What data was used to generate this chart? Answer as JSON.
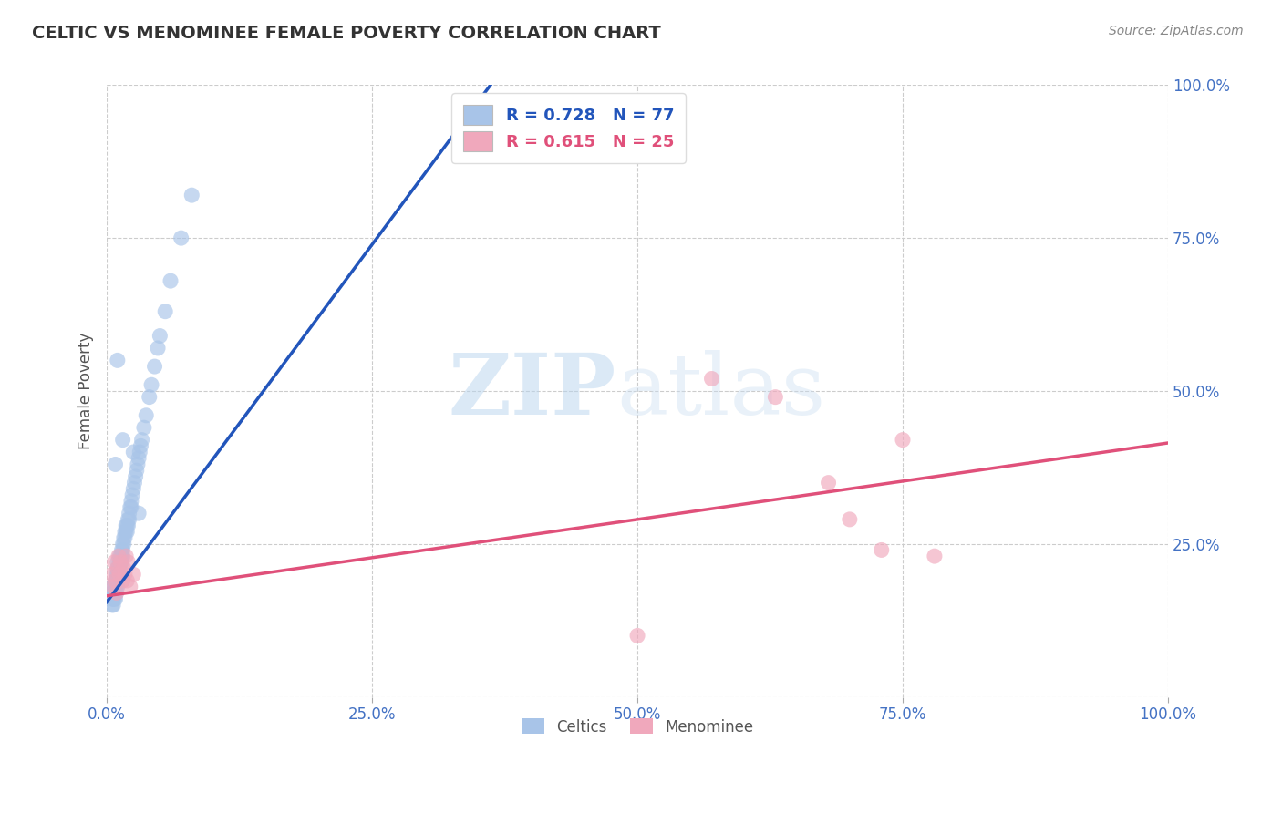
{
  "title": "CELTIC VS MENOMINEE FEMALE POVERTY CORRELATION CHART",
  "source_text": "Source: ZipAtlas.com",
  "ylabel": "Female Poverty",
  "xlim": [
    0,
    1
  ],
  "ylim": [
    0,
    1
  ],
  "xticks": [
    0.0,
    0.25,
    0.5,
    0.75,
    1.0
  ],
  "yticks": [
    0.0,
    0.25,
    0.5,
    0.75,
    1.0
  ],
  "xticklabels": [
    "0.0%",
    "25.0%",
    "50.0%",
    "75.0%",
    "100.0%"
  ],
  "yticklabels": [
    "",
    "25.0%",
    "50.0%",
    "75.0%",
    "100.0%"
  ],
  "tick_color": "#4472c4",
  "grid_color": "#cccccc",
  "background_color": "#ffffff",
  "celtics_color": "#a8c4e8",
  "menominee_color": "#f0a8bc",
  "celtics_line_color": "#2255bb",
  "menominee_line_color": "#e0507a",
  "celtics_R": 0.728,
  "celtics_N": 77,
  "menominee_R": 0.615,
  "menominee_N": 25,
  "watermark_zip": "ZIP",
  "watermark_atlas": "atlas",
  "legend_labels": [
    "Celtics",
    "Menominee"
  ],
  "celtics_line_x": [
    0.0,
    0.37
  ],
  "celtics_line_y": [
    0.155,
    1.02
  ],
  "menominee_line_x": [
    0.0,
    1.0
  ],
  "menominee_line_y": [
    0.165,
    0.415
  ],
  "celtics_x": [
    0.005,
    0.005,
    0.005,
    0.005,
    0.006,
    0.006,
    0.006,
    0.007,
    0.007,
    0.007,
    0.008,
    0.008,
    0.008,
    0.008,
    0.009,
    0.009,
    0.009,
    0.009,
    0.01,
    0.01,
    0.01,
    0.01,
    0.01,
    0.011,
    0.011,
    0.012,
    0.012,
    0.012,
    0.013,
    0.013,
    0.014,
    0.014,
    0.014,
    0.015,
    0.015,
    0.015,
    0.016,
    0.016,
    0.017,
    0.017,
    0.018,
    0.018,
    0.019,
    0.019,
    0.02,
    0.02,
    0.021,
    0.021,
    0.022,
    0.023,
    0.023,
    0.024,
    0.025,
    0.026,
    0.027,
    0.028,
    0.029,
    0.03,
    0.031,
    0.032,
    0.033,
    0.035,
    0.037,
    0.04,
    0.042,
    0.045,
    0.048,
    0.05,
    0.055,
    0.06,
    0.07,
    0.08,
    0.03,
    0.025,
    0.015,
    0.01,
    0.008
  ],
  "celtics_y": [
    0.17,
    0.16,
    0.18,
    0.15,
    0.17,
    0.16,
    0.15,
    0.18,
    0.16,
    0.17,
    0.19,
    0.17,
    0.16,
    0.18,
    0.2,
    0.19,
    0.18,
    0.17,
    0.21,
    0.2,
    0.19,
    0.18,
    0.22,
    0.21,
    0.2,
    0.22,
    0.21,
    0.23,
    0.23,
    0.22,
    0.24,
    0.23,
    0.22,
    0.25,
    0.24,
    0.23,
    0.26,
    0.25,
    0.27,
    0.26,
    0.28,
    0.27,
    0.28,
    0.27,
    0.29,
    0.28,
    0.3,
    0.29,
    0.31,
    0.32,
    0.31,
    0.33,
    0.34,
    0.35,
    0.36,
    0.37,
    0.38,
    0.39,
    0.4,
    0.41,
    0.42,
    0.44,
    0.46,
    0.49,
    0.51,
    0.54,
    0.57,
    0.59,
    0.63,
    0.68,
    0.75,
    0.82,
    0.3,
    0.4,
    0.42,
    0.55,
    0.38
  ],
  "menominee_x": [
    0.005,
    0.006,
    0.007,
    0.008,
    0.009,
    0.01,
    0.011,
    0.012,
    0.013,
    0.015,
    0.016,
    0.017,
    0.018,
    0.019,
    0.02,
    0.022,
    0.025,
    0.57,
    0.63,
    0.68,
    0.7,
    0.73,
    0.75,
    0.78,
    0.5
  ],
  "menominee_y": [
    0.2,
    0.18,
    0.22,
    0.19,
    0.17,
    0.21,
    0.23,
    0.2,
    0.22,
    0.19,
    0.21,
    0.2,
    0.23,
    0.19,
    0.22,
    0.18,
    0.2,
    0.52,
    0.49,
    0.35,
    0.29,
    0.24,
    0.42,
    0.23,
    0.1
  ]
}
